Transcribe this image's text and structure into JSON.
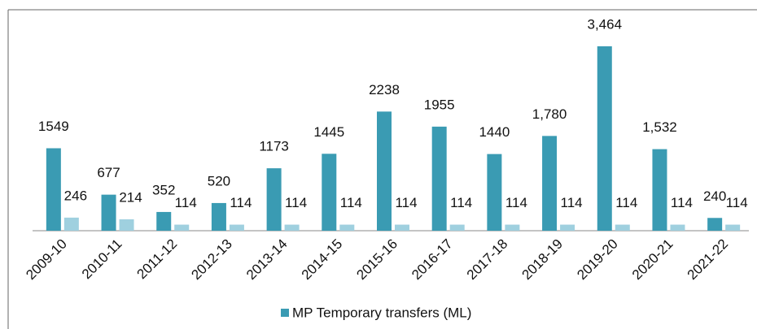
{
  "chart_data": {
    "type": "bar",
    "categories": [
      "2009-10",
      "2010-11",
      "2011-12",
      "2012-13",
      "2013-14",
      "2014-15",
      "2015-16",
      "2016-17",
      "2017-18",
      "2018-19",
      "2019-20",
      "2020-21",
      "2021-22"
    ],
    "series": [
      {
        "name": "MP Temporary transfers (ML)",
        "color": "#3a9bb3",
        "values": [
          1549,
          677,
          352,
          520,
          1173,
          1445,
          2238,
          1955,
          1440,
          1780,
          3464,
          1532,
          240
        ],
        "value_labels": [
          "1549",
          "677",
          "352",
          "520",
          "1173",
          "1445",
          "2238",
          "1955",
          "1440",
          "1,780",
          "3,464",
          "1,532",
          "240"
        ]
      },
      {
        "color": "#9fd0df",
        "values": [
          246,
          214,
          114,
          114,
          114,
          114,
          114,
          114,
          114,
          114,
          114,
          114,
          114
        ]
      }
    ]
  }
}
